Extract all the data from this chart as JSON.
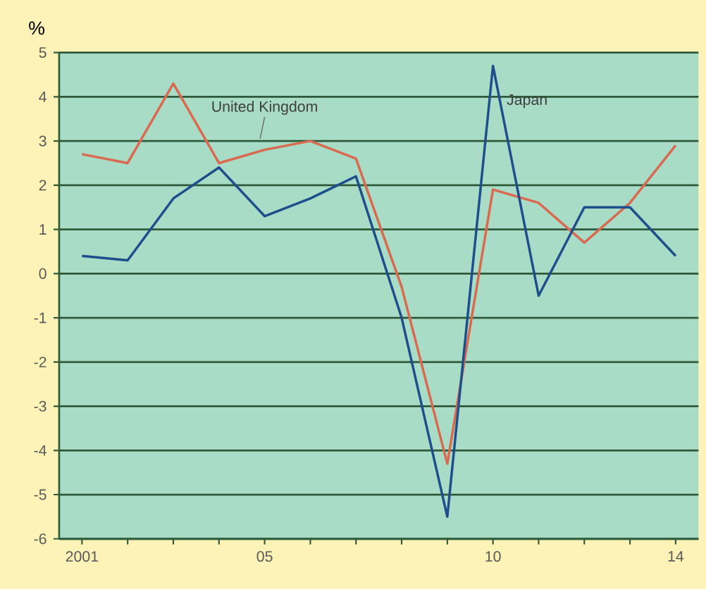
{
  "chart_data": {
    "type": "line",
    "ylabel": "%",
    "x": [
      2001,
      2002,
      2003,
      2004,
      2005,
      2006,
      2007,
      2008,
      2009,
      2010,
      2011,
      2012,
      2013,
      2014
    ],
    "series": [
      {
        "name": "United Kingdom",
        "color": "#d9694f",
        "values": [
          2.7,
          2.5,
          4.3,
          2.5,
          2.8,
          3.0,
          2.6,
          -0.3,
          -4.3,
          1.9,
          1.6,
          0.7,
          1.6,
          2.9
        ]
      },
      {
        "name": "Japan",
        "color": "#1f4e8c",
        "values": [
          0.4,
          0.3,
          1.7,
          2.4,
          1.3,
          1.7,
          2.2,
          -1.0,
          -5.5,
          4.7,
          -0.5,
          1.5,
          1.5,
          0.4
        ]
      }
    ],
    "xlim": [
      2000.5,
      2014.5
    ],
    "xticks": [
      {
        "value": 2001,
        "label": "2001"
      },
      {
        "value": 2002,
        "label": null
      },
      {
        "value": 2003,
        "label": null
      },
      {
        "value": 2004,
        "label": null
      },
      {
        "value": 2005,
        "label": "05"
      },
      {
        "value": 2006,
        "label": null
      },
      {
        "value": 2007,
        "label": null
      },
      {
        "value": 2008,
        "label": null
      },
      {
        "value": 2009,
        "label": null
      },
      {
        "value": 2010,
        "label": "10"
      },
      {
        "value": 2011,
        "label": null
      },
      {
        "value": 2012,
        "label": null
      },
      {
        "value": 2013,
        "label": null
      },
      {
        "value": 2014,
        "label": "14"
      }
    ],
    "ylim": [
      -6,
      5
    ],
    "yticks": [
      -6,
      -5,
      -4,
      -3,
      -2,
      -1,
      0,
      1,
      2,
      3,
      4,
      5
    ],
    "grid": "y",
    "legend": false,
    "marker": "none",
    "line_style": "solid"
  }
}
